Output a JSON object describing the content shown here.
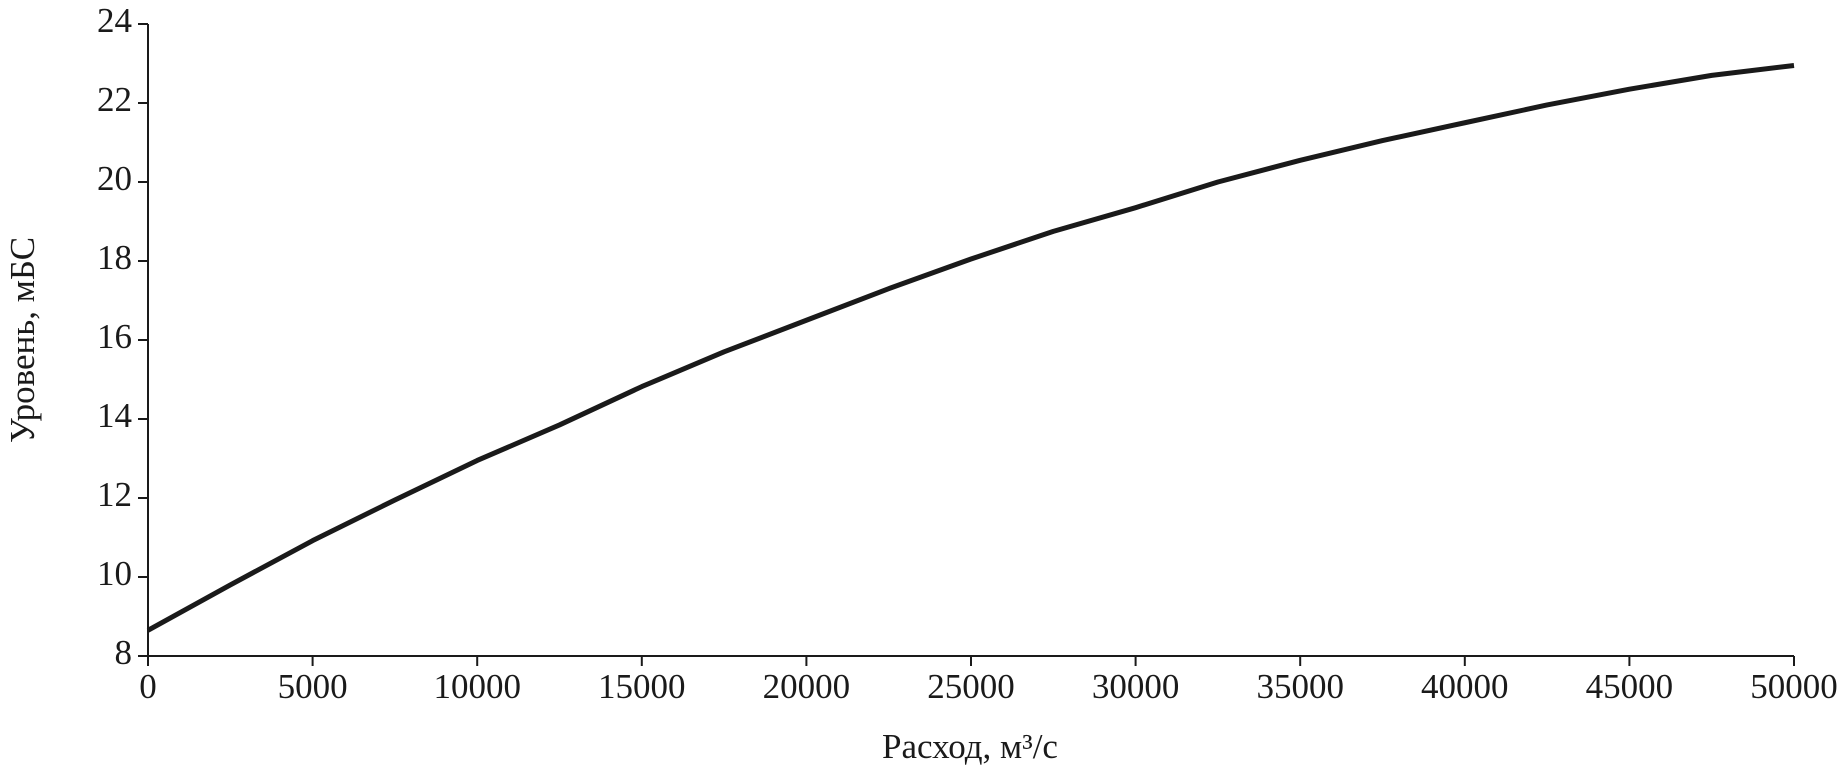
{
  "chart_data": {
    "type": "line",
    "x_label": "Расход, м³/с",
    "y_label": "Уровень, мБС",
    "x": [
      0,
      2500,
      5000,
      7500,
      10000,
      12500,
      15000,
      17500,
      20000,
      22500,
      25000,
      27500,
      30000,
      32500,
      35000,
      37500,
      40000,
      42500,
      45000,
      47500,
      50000
    ],
    "series": [
      {
        "color": "#1a1a1a",
        "values": [
          8.65,
          9.8,
          10.92,
          11.95,
          12.95,
          13.85,
          14.82,
          15.7,
          16.5,
          17.3,
          18.05,
          18.75,
          19.35,
          20.0,
          20.55,
          21.05,
          21.5,
          21.95,
          22.35,
          22.7,
          22.95
        ]
      }
    ],
    "xlim": [
      0,
      50000
    ],
    "xticks": [
      0,
      5000,
      10000,
      15000,
      20000,
      25000,
      30000,
      35000,
      40000,
      45000,
      50000
    ],
    "ylim": [
      8,
      24
    ],
    "yticks": [
      8,
      10,
      12,
      14,
      16,
      18,
      20,
      22,
      24
    ]
  }
}
